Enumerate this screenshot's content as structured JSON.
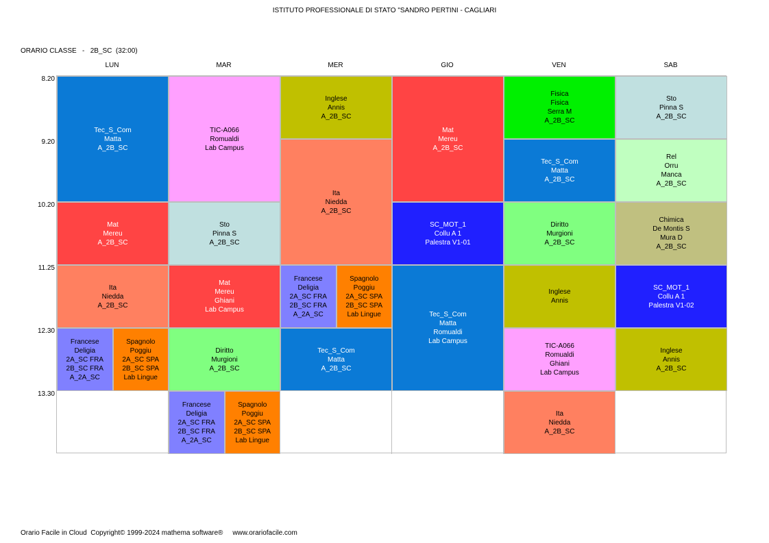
{
  "header": {
    "school": "ISTITUTO PROFESSIONALE DI STATO \"SANDRO PERTINI - CAGLIARI",
    "class_label": "ORARIO CLASSE   -   2B_SC  (32:00)"
  },
  "days": [
    "LUN",
    "MAR",
    "MER",
    "GIO",
    "VEN",
    "SAB"
  ],
  "times": [
    "8.20",
    "9.20",
    "10.20",
    "11.25",
    "12.30",
    "13.30"
  ],
  "lessons": [
    {
      "day": 0,
      "slot": 0,
      "span": 2,
      "sub": 0,
      "nsub": 1,
      "color": "#0b7ad6",
      "white": true,
      "lines": [
        "Tec_S_Com",
        "Matta",
        "A_2B_SC"
      ]
    },
    {
      "day": 0,
      "slot": 2,
      "span": 1,
      "sub": 0,
      "nsub": 1,
      "color": "#ff4444",
      "white": true,
      "lines": [
        "Mat",
        "Mereu",
        "A_2B_SC"
      ]
    },
    {
      "day": 0,
      "slot": 3,
      "span": 1,
      "sub": 0,
      "nsub": 1,
      "color": "#ff8060",
      "white": false,
      "lines": [
        "Ita",
        "Niedda",
        "A_2B_SC"
      ]
    },
    {
      "day": 0,
      "slot": 4,
      "span": 1,
      "sub": 0,
      "nsub": 2,
      "color": "#8080ff",
      "white": false,
      "lines": [
        "Francese",
        "Deligia",
        "2A_SC FRA",
        "2B_SC FRA",
        "A_2A_SC"
      ]
    },
    {
      "day": 0,
      "slot": 4,
      "span": 1,
      "sub": 1,
      "nsub": 2,
      "color": "#ff8000",
      "white": false,
      "lines": [
        "Spagnolo",
        "Poggiu",
        "2A_SC SPA",
        "2B_SC SPA",
        "Lab Lingue"
      ]
    },
    {
      "day": 1,
      "slot": 0,
      "span": 2,
      "sub": 0,
      "nsub": 1,
      "color": "#ffa0ff",
      "white": false,
      "lines": [
        "TIC-A066",
        "Romualdi",
        "Lab Campus"
      ]
    },
    {
      "day": 1,
      "slot": 2,
      "span": 1,
      "sub": 0,
      "nsub": 1,
      "color": "#c0e0e0",
      "white": false,
      "lines": [
        "Sto",
        "Pinna S",
        "A_2B_SC"
      ]
    },
    {
      "day": 1,
      "slot": 3,
      "span": 1,
      "sub": 0,
      "nsub": 1,
      "color": "#ff4444",
      "white": true,
      "lines": [
        "Mat",
        "Mereu",
        "Ghiani",
        "Lab Campus"
      ]
    },
    {
      "day": 1,
      "slot": 4,
      "span": 1,
      "sub": 0,
      "nsub": 1,
      "color": "#80ff80",
      "white": false,
      "lines": [
        "Diritto",
        "Murgioni",
        "A_2B_SC"
      ]
    },
    {
      "day": 1,
      "slot": 5,
      "span": 1,
      "sub": 0,
      "nsub": 2,
      "color": "#8080ff",
      "white": false,
      "lines": [
        "Francese",
        "Deligia",
        "2A_SC FRA",
        "2B_SC FRA",
        "A_2A_SC"
      ]
    },
    {
      "day": 1,
      "slot": 5,
      "span": 1,
      "sub": 1,
      "nsub": 2,
      "color": "#ff8000",
      "white": false,
      "lines": [
        "Spagnolo",
        "Poggiu",
        "2A_SC SPA",
        "2B_SC SPA",
        "Lab Lingue"
      ]
    },
    {
      "day": 2,
      "slot": 0,
      "span": 1,
      "sub": 0,
      "nsub": 1,
      "color": "#c0c000",
      "white": false,
      "lines": [
        "Inglese",
        "Annis",
        "A_2B_SC"
      ]
    },
    {
      "day": 2,
      "slot": 1,
      "span": 2,
      "sub": 0,
      "nsub": 1,
      "color": "#ff8060",
      "white": false,
      "lines": [
        "Ita",
        "Niedda",
        "A_2B_SC"
      ]
    },
    {
      "day": 2,
      "slot": 3,
      "span": 1,
      "sub": 0,
      "nsub": 2,
      "color": "#8080ff",
      "white": false,
      "lines": [
        "Francese",
        "Deligia",
        "2A_SC FRA",
        "2B_SC FRA",
        "A_2A_SC"
      ]
    },
    {
      "day": 2,
      "slot": 3,
      "span": 1,
      "sub": 1,
      "nsub": 2,
      "color": "#ff8000",
      "white": false,
      "lines": [
        "Spagnolo",
        "Poggiu",
        "2A_SC SPA",
        "2B_SC SPA",
        "Lab Lingue"
      ]
    },
    {
      "day": 2,
      "slot": 4,
      "span": 1,
      "sub": 0,
      "nsub": 1,
      "color": "#0b7ad6",
      "white": true,
      "lines": [
        "Tec_S_Com",
        "Matta",
        "A_2B_SC"
      ]
    },
    {
      "day": 3,
      "slot": 0,
      "span": 2,
      "sub": 0,
      "nsub": 1,
      "color": "#ff4444",
      "white": true,
      "lines": [
        "Mat",
        "Mereu",
        "A_2B_SC"
      ]
    },
    {
      "day": 3,
      "slot": 2,
      "span": 1,
      "sub": 0,
      "nsub": 1,
      "color": "#2020ff",
      "white": true,
      "lines": [
        "SC_MOT_1",
        "Collu A 1",
        "Palestra V1-01"
      ]
    },
    {
      "day": 3,
      "slot": 3,
      "span": 2,
      "sub": 0,
      "nsub": 1,
      "color": "#0b7ad6",
      "white": true,
      "lines": [
        "Tec_S_Com",
        "Matta",
        "Romualdi",
        "Lab Campus"
      ]
    },
    {
      "day": 4,
      "slot": 0,
      "span": 1,
      "sub": 0,
      "nsub": 1,
      "color": "#00f000",
      "white": false,
      "lines": [
        "Fisica",
        "Fisica",
        "Serra M",
        "A_2B_SC"
      ]
    },
    {
      "day": 4,
      "slot": 1,
      "span": 1,
      "sub": 0,
      "nsub": 1,
      "color": "#0b7ad6",
      "white": true,
      "lines": [
        "Tec_S_Com",
        "Matta",
        "A_2B_SC"
      ]
    },
    {
      "day": 4,
      "slot": 2,
      "span": 1,
      "sub": 0,
      "nsub": 1,
      "color": "#80ff80",
      "white": false,
      "lines": [
        "Diritto",
        "Murgioni",
        "A_2B_SC"
      ]
    },
    {
      "day": 4,
      "slot": 3,
      "span": 1,
      "sub": 0,
      "nsub": 1,
      "color": "#c0c000",
      "white": false,
      "lines": [
        "Inglese",
        "Annis"
      ]
    },
    {
      "day": 4,
      "slot": 4,
      "span": 1,
      "sub": 0,
      "nsub": 1,
      "color": "#ffa0ff",
      "white": false,
      "lines": [
        "TIC-A066",
        "Romualdi",
        "Ghiani",
        "Lab Campus"
      ]
    },
    {
      "day": 4,
      "slot": 5,
      "span": 1,
      "sub": 0,
      "nsub": 1,
      "color": "#ff8060",
      "white": false,
      "lines": [
        "Ita",
        "Niedda",
        "A_2B_SC"
      ]
    },
    {
      "day": 5,
      "slot": 0,
      "span": 1,
      "sub": 0,
      "nsub": 1,
      "color": "#c0e0e0",
      "white": false,
      "lines": [
        "Sto",
        "Pinna S",
        "A_2B_SC"
      ]
    },
    {
      "day": 5,
      "slot": 1,
      "span": 1,
      "sub": 0,
      "nsub": 1,
      "color": "#c0ffc0",
      "white": false,
      "lines": [
        "Rel",
        "Orru",
        "Manca",
        "A_2B_SC"
      ]
    },
    {
      "day": 5,
      "slot": 2,
      "span": 1,
      "sub": 0,
      "nsub": 1,
      "color": "#c0c080",
      "white": false,
      "lines": [
        "Chimica",
        "De Montis S",
        "Mura D",
        "A_2B_SC"
      ]
    },
    {
      "day": 5,
      "slot": 3,
      "span": 1,
      "sub": 0,
      "nsub": 1,
      "color": "#2020ff",
      "white": true,
      "lines": [
        "SC_MOT_1",
        "Collu A 1",
        "Palestra V1-02"
      ]
    },
    {
      "day": 5,
      "slot": 4,
      "span": 1,
      "sub": 0,
      "nsub": 1,
      "color": "#c0c000",
      "white": false,
      "lines": [
        "Inglese",
        "Annis",
        "A_2B_SC"
      ]
    }
  ],
  "footer": "Orario Facile in Cloud  Copyright© 1999-2024 mathema software®     www.orariofacile.com"
}
